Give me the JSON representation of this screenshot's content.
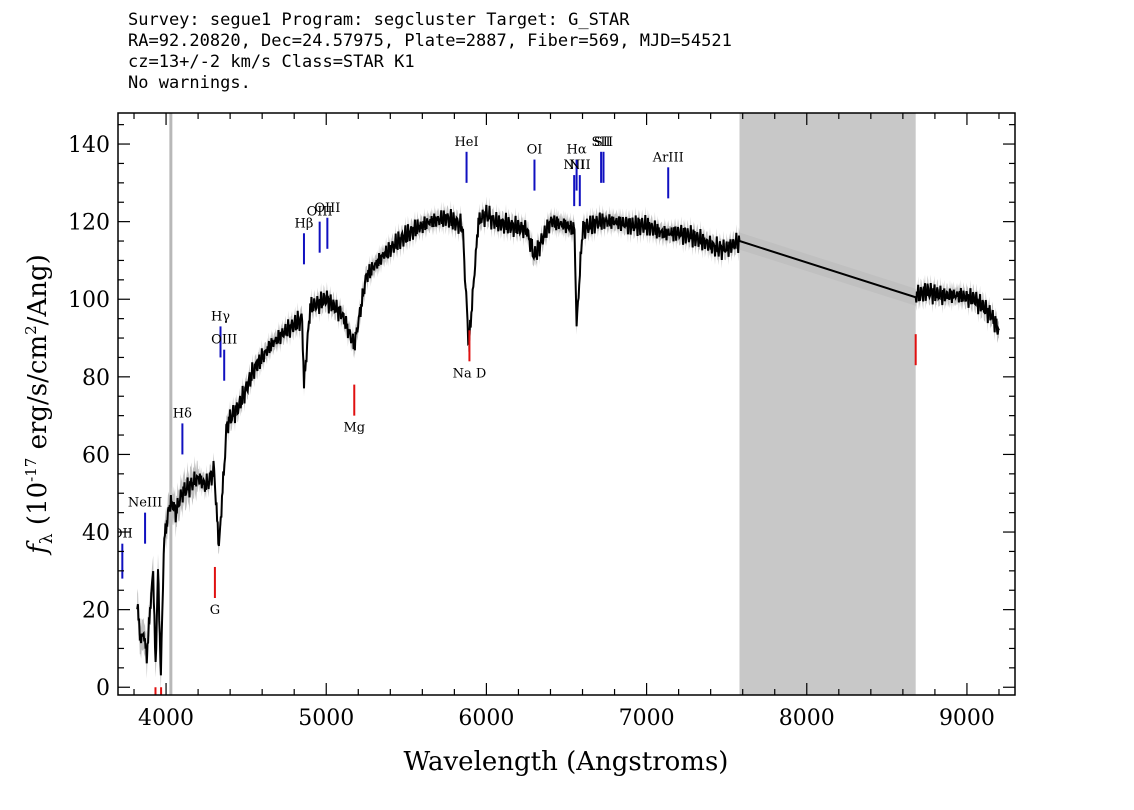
{
  "header": {
    "line1": "Survey: segue1 Program: segcluster Target: G_STAR",
    "line2": "RA=92.20820, Dec=24.57975, Plate=2887, Fiber=569, MJD=54521",
    "line3": "cz=13+/-2 km/s Class=STAR K1",
    "line4": "No warnings."
  },
  "chart_data": {
    "type": "line",
    "xlabel": "Wavelength (Angstroms)",
    "ylabel": "f_λ (10^-17 erg/s/cm^2/Ang)",
    "xlim": [
      3700,
      9300
    ],
    "ylim": [
      -2,
      148
    ],
    "x_ticks": [
      4000,
      5000,
      6000,
      7000,
      8000,
      9000
    ],
    "y_ticks": [
      0,
      20,
      40,
      60,
      80,
      100,
      120,
      140
    ],
    "colors": {
      "flux": "#000000",
      "error": "#c0c0c0",
      "masked_region": "#c8c8c8",
      "emission": "#1010c0",
      "absorption": "#e01010"
    },
    "masked_region": [
      7580,
      8680
    ],
    "gray_marker_x": 4030,
    "series": [
      {
        "x": [
          3820,
          3840,
          3860,
          3880,
          3900,
          3920,
          3935,
          3950,
          3968,
          3985,
          4000,
          4030,
          4060,
          4100,
          4150,
          4200,
          4250,
          4300,
          4330,
          4380,
          4450,
          4550,
          4650,
          4750,
          4850,
          4861,
          4900,
          5000,
          5100,
          5175,
          5250,
          5350,
          5450,
          5550,
          5650,
          5750,
          5850,
          5890,
          5950,
          6000,
          6050,
          6150,
          6250,
          6300,
          6400,
          6500,
          6550,
          6563,
          6600,
          6700,
          6800,
          6900,
          7000,
          7100,
          7200,
          7300,
          7400,
          7450,
          7500,
          7580,
          8680,
          8750,
          8850,
          8950,
          9050,
          9150,
          9200
        ],
        "values": [
          22,
          12,
          14,
          8,
          20,
          30,
          5,
          30,
          3,
          35,
          42,
          48,
          45,
          50,
          52,
          54,
          52,
          56,
          36,
          68,
          72,
          82,
          88,
          92,
          95,
          78,
          98,
          100,
          96,
          88,
          106,
          111,
          115,
          118,
          120,
          121,
          119,
          88,
          120,
          122,
          120,
          119,
          118,
          111,
          120,
          119,
          118,
          93,
          118,
          120,
          120,
          119,
          119,
          117,
          117,
          116,
          114,
          113,
          113,
          115,
          101,
          102,
          101,
          101,
          100,
          96,
          92
        ]
      }
    ],
    "emission_lines": [
      {
        "label": "OII",
        "x": 3727,
        "y0": 28,
        "y1": 37
      },
      {
        "label": "NeIII",
        "x": 3869,
        "y0": 37,
        "y1": 45
      },
      {
        "label": "Hδ",
        "x": 4102,
        "y0": 60,
        "y1": 68
      },
      {
        "label": "Hγ",
        "x": 4340,
        "y0": 85,
        "y1": 93
      },
      {
        "label": "OIII",
        "x": 4363,
        "y0": 79,
        "y1": 87
      },
      {
        "label": "Hβ",
        "x": 4861,
        "y0": 109,
        "y1": 117
      },
      {
        "label": "OIII",
        "x": 4959,
        "y0": 112,
        "y1": 120
      },
      {
        "label": "OIII",
        "x": 5007,
        "y0": 113,
        "y1": 121
      },
      {
        "label": "HeI",
        "x": 5876,
        "y0": 130,
        "y1": 138
      },
      {
        "label": "OI",
        "x": 6300,
        "y0": 128,
        "y1": 136
      },
      {
        "label": "NII",
        "x": 6548,
        "y0": 124,
        "y1": 132
      },
      {
        "label": "Hα",
        "x": 6563,
        "y0": 128,
        "y1": 136
      },
      {
        "label": "NII",
        "x": 6583,
        "y0": 124,
        "y1": 132
      },
      {
        "label": "SII",
        "x": 6716,
        "y0": 130,
        "y1": 138
      },
      {
        "label": "SII",
        "x": 6731,
        "y0": 130,
        "y1": 138
      },
      {
        "label": "ArIII",
        "x": 7135,
        "y0": 126,
        "y1": 134
      }
    ],
    "absorption_lines": [
      {
        "label": "",
        "x": 3934,
        "y0": -2,
        "y1": 0
      },
      {
        "label": "",
        "x": 3969,
        "y0": -2,
        "y1": 0
      },
      {
        "label": "G",
        "x": 4305,
        "y0": 23,
        "y1": 31
      },
      {
        "label": "Mg",
        "x": 5175,
        "y0": 70,
        "y1": 78
      },
      {
        "label": "Na D",
        "x": 5894,
        "y0": 84,
        "y1": 92
      },
      {
        "label": "",
        "x": 8680,
        "y0": 83,
        "y1": 91
      }
    ]
  }
}
